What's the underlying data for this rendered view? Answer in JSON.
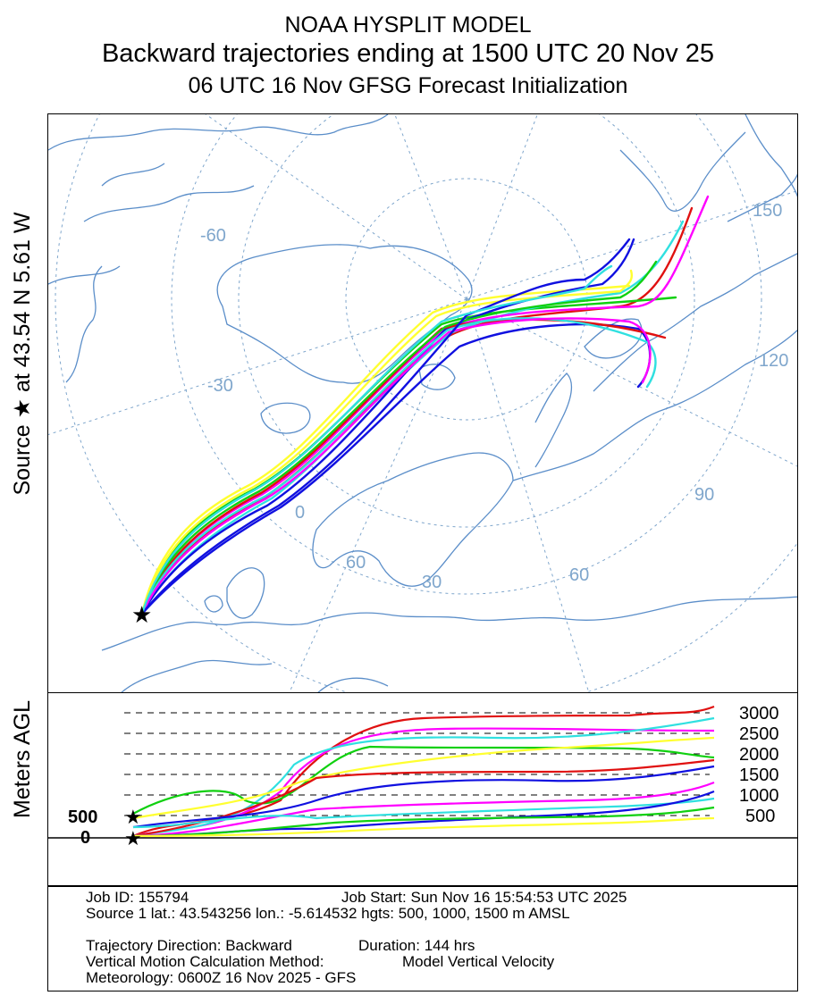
{
  "header": {
    "line1": "NOAA HYSPLIT MODEL",
    "line2": "Backward trajectories ending at 1500 UTC 20 Nov 25",
    "line3": "06 UTC 16 Nov    GFSG  Forecast Initialization"
  },
  "side_labels": {
    "source": "Source ★  at   43.54 N    5.61 W",
    "vertical": "Meters AGL"
  },
  "map": {
    "graticule_labels": [
      "-60",
      "-30",
      "0",
      "30",
      "60",
      "90",
      "120",
      "150",
      "60"
    ],
    "source_marker": "star-icon",
    "colors": {
      "land": "#5b8ec9",
      "graticule": "#7fa6cc",
      "series": [
        "#e01010",
        "#1010e0",
        "#10d010",
        "#30e0e0",
        "#ff00ff",
        "#ffff30"
      ]
    }
  },
  "vertical": {
    "right_ticks": [
      "3000",
      "2500",
      "2000",
      "1500",
      "1000",
      "500"
    ],
    "left_ticks": [
      "500",
      "0"
    ]
  },
  "info": {
    "job_id": "Job ID: 155794",
    "job_start": "Job Start: Sun Nov 16 15:54:53 UTC 2025",
    "source": "Source 1 lat.: 43.543256  lon.: -5.614532  hgts: 500, 1000, 1500 m AMSL",
    "direction": "Trajectory Direction: Backward",
    "duration": "Duration: 144 hrs",
    "vertical_method": "Vertical Motion Calculation Method:",
    "vertical_value": "Model Vertical Velocity",
    "meteorology": "Meteorology: 0600Z 16 Nov 2025 - GFS"
  }
}
